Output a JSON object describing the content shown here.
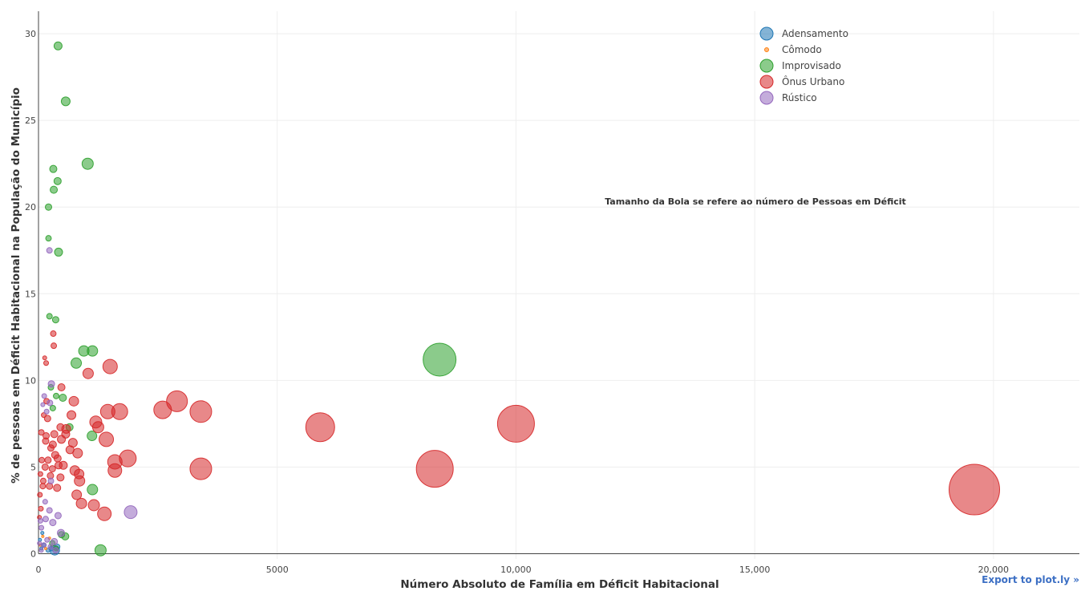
{
  "export_label": "Export to plot.ly »",
  "chart_data": {
    "type": "scatter",
    "subtype": "bubble",
    "xlabel": "Número Absoluto de Família em Déficit Habitacional",
    "ylabel": "% de pessoas em Déficit Habitacional na População do Município",
    "xlim": [
      0,
      21800
    ],
    "ylim": [
      -0.3,
      31.3
    ],
    "xticks": [
      {
        "value": 0,
        "label": "0"
      },
      {
        "value": 5000,
        "label": "5000"
      },
      {
        "value": 10000,
        "label": "10,000"
      },
      {
        "value": 15000,
        "label": "15,000"
      },
      {
        "value": 20000,
        "label": "20,000"
      }
    ],
    "yticks": [
      {
        "value": 0,
        "label": "0"
      },
      {
        "value": 5,
        "label": "5"
      },
      {
        "value": 10,
        "label": "10"
      },
      {
        "value": 15,
        "label": "15"
      },
      {
        "value": 20,
        "label": "20"
      },
      {
        "value": 25,
        "label": "25"
      },
      {
        "value": 30,
        "label": "30"
      }
    ],
    "grid": true,
    "legend_position": "top-right",
    "size_note": "bubble size = number of people in deficit",
    "annotation": "Tamanho da Bola se refere ao número de Pessoas em Déficit",
    "series": [
      {
        "name": "Adensamento",
        "color": "#1f77b4",
        "points": [
          [
            340,
            0.2,
            12
          ],
          [
            390,
            0.4,
            7
          ],
          [
            270,
            0.3,
            6
          ],
          [
            200,
            0.2,
            5
          ],
          [
            120,
            0.5,
            5
          ],
          [
            60,
            0.3,
            4
          ],
          [
            30,
            0.8,
            4
          ],
          [
            80,
            1.2,
            4
          ]
        ]
      },
      {
        "name": "Cômodo",
        "color": "#ff7f0e",
        "points": [
          [
            40,
            0.5,
            3
          ],
          [
            90,
            1.0,
            3
          ],
          [
            150,
            0.3,
            3
          ],
          [
            230,
            0.9,
            3
          ]
        ]
      },
      {
        "name": "Improvisado",
        "color": "#2ca02c",
        "points": [
          [
            410,
            29.3,
            10
          ],
          [
            570,
            26.1,
            11
          ],
          [
            1030,
            22.5,
            14
          ],
          [
            310,
            22.2,
            9
          ],
          [
            400,
            21.5,
            9
          ],
          [
            320,
            21.0,
            9
          ],
          [
            210,
            20.0,
            8
          ],
          [
            210,
            18.2,
            7
          ],
          [
            420,
            17.4,
            10
          ],
          [
            230,
            13.7,
            7
          ],
          [
            360,
            13.5,
            8
          ],
          [
            1130,
            11.7,
            13
          ],
          [
            950,
            11.7,
            13
          ],
          [
            790,
            11.0,
            13
          ],
          [
            8400,
            11.2,
            41
          ],
          [
            260,
            9.6,
            7
          ],
          [
            370,
            9.1,
            7
          ],
          [
            510,
            9.0,
            9
          ],
          [
            300,
            8.4,
            7
          ],
          [
            650,
            7.3,
            9
          ],
          [
            1120,
            6.8,
            12
          ],
          [
            1130,
            3.7,
            13
          ],
          [
            1300,
            0.2,
            14
          ],
          [
            560,
            1.0,
            9
          ],
          [
            480,
            1.1,
            8
          ],
          [
            290,
            0.6,
            7
          ],
          [
            370,
            0.3,
            6
          ]
        ]
      },
      {
        "name": "Ônus Urbano",
        "color": "#d62728",
        "points": [
          [
            19600,
            3.7,
            63
          ],
          [
            10000,
            7.5,
            46
          ],
          [
            8300,
            4.9,
            46
          ],
          [
            5900,
            7.3,
            36
          ],
          [
            3400,
            8.2,
            27
          ],
          [
            2900,
            8.8,
            26
          ],
          [
            2600,
            8.3,
            22
          ],
          [
            3400,
            4.9,
            27
          ],
          [
            1700,
            8.2,
            20
          ],
          [
            1500,
            10.8,
            18
          ],
          [
            1870,
            5.5,
            21
          ],
          [
            1600,
            5.3,
            18
          ],
          [
            1600,
            4.8,
            17
          ],
          [
            1450,
            8.2,
            18
          ],
          [
            1420,
            6.6,
            18
          ],
          [
            1380,
            2.3,
            17
          ],
          [
            1200,
            7.6,
            15
          ],
          [
            1250,
            7.3,
            14
          ],
          [
            1160,
            2.8,
            14
          ],
          [
            1040,
            10.4,
            13
          ],
          [
            900,
            2.9,
            13
          ],
          [
            860,
            4.2,
            13
          ],
          [
            820,
            5.8,
            12
          ],
          [
            850,
            4.6,
            12
          ],
          [
            760,
            4.8,
            12
          ],
          [
            800,
            3.4,
            12
          ],
          [
            740,
            8.8,
            12
          ],
          [
            690,
            8.0,
            11
          ],
          [
            720,
            6.4,
            11
          ],
          [
            660,
            6.0,
            10
          ],
          [
            580,
            7.2,
            11
          ],
          [
            570,
            6.9,
            10
          ],
          [
            520,
            5.1,
            10
          ],
          [
            480,
            6.6,
            10
          ],
          [
            460,
            7.3,
            9
          ],
          [
            460,
            4.4,
            9
          ],
          [
            400,
            5.5,
            9
          ],
          [
            420,
            5.1,
            9
          ],
          [
            390,
            3.8,
            9
          ],
          [
            330,
            6.9,
            9
          ],
          [
            350,
            5.7,
            9
          ],
          [
            300,
            6.3,
            9
          ],
          [
            290,
            4.9,
            8
          ],
          [
            260,
            6.1,
            8
          ],
          [
            250,
            4.5,
            8
          ],
          [
            230,
            3.9,
            8
          ],
          [
            200,
            5.4,
            8
          ],
          [
            190,
            7.8,
            8
          ],
          [
            160,
            6.8,
            8
          ],
          [
            150,
            6.5,
            8
          ],
          [
            140,
            5.0,
            8
          ],
          [
            100,
            4.2,
            7
          ],
          [
            90,
            3.9,
            7
          ],
          [
            70,
            5.4,
            7
          ],
          [
            60,
            7.0,
            7
          ],
          [
            110,
            8.0,
            6
          ],
          [
            160,
            11.0,
            6
          ],
          [
            130,
            11.3,
            5
          ],
          [
            310,
            12.7,
            7
          ],
          [
            320,
            12.0,
            7
          ],
          [
            170,
            8.8,
            7
          ],
          [
            50,
            2.6,
            6
          ],
          [
            30,
            3.4,
            6
          ],
          [
            40,
            4.6,
            6
          ],
          [
            20,
            2.1,
            5
          ],
          [
            480,
            9.6,
            9
          ]
        ]
      },
      {
        "name": "Rústico",
        "color": "#9467bd",
        "points": [
          [
            1930,
            2.4,
            16
          ],
          [
            230,
            17.5,
            7
          ],
          [
            270,
            9.8,
            8
          ],
          [
            240,
            8.7,
            7
          ],
          [
            170,
            8.2,
            6
          ],
          [
            120,
            9.1,
            6
          ],
          [
            90,
            8.6,
            5
          ],
          [
            410,
            2.2,
            8
          ],
          [
            470,
            1.2,
            9
          ],
          [
            300,
            1.8,
            8
          ],
          [
            230,
            2.5,
            7
          ],
          [
            150,
            2.0,
            7
          ],
          [
            60,
            1.5,
            6
          ],
          [
            40,
            1.9,
            6
          ],
          [
            180,
            0.8,
            6
          ],
          [
            110,
            0.5,
            6
          ],
          [
            250,
            0.4,
            6
          ],
          [
            330,
            0.7,
            8
          ],
          [
            360,
            0.2,
            7
          ],
          [
            60,
            0.2,
            5
          ],
          [
            20,
            0.6,
            5
          ],
          [
            140,
            3.0,
            6
          ],
          [
            260,
            4.2,
            7
          ]
        ]
      }
    ]
  }
}
